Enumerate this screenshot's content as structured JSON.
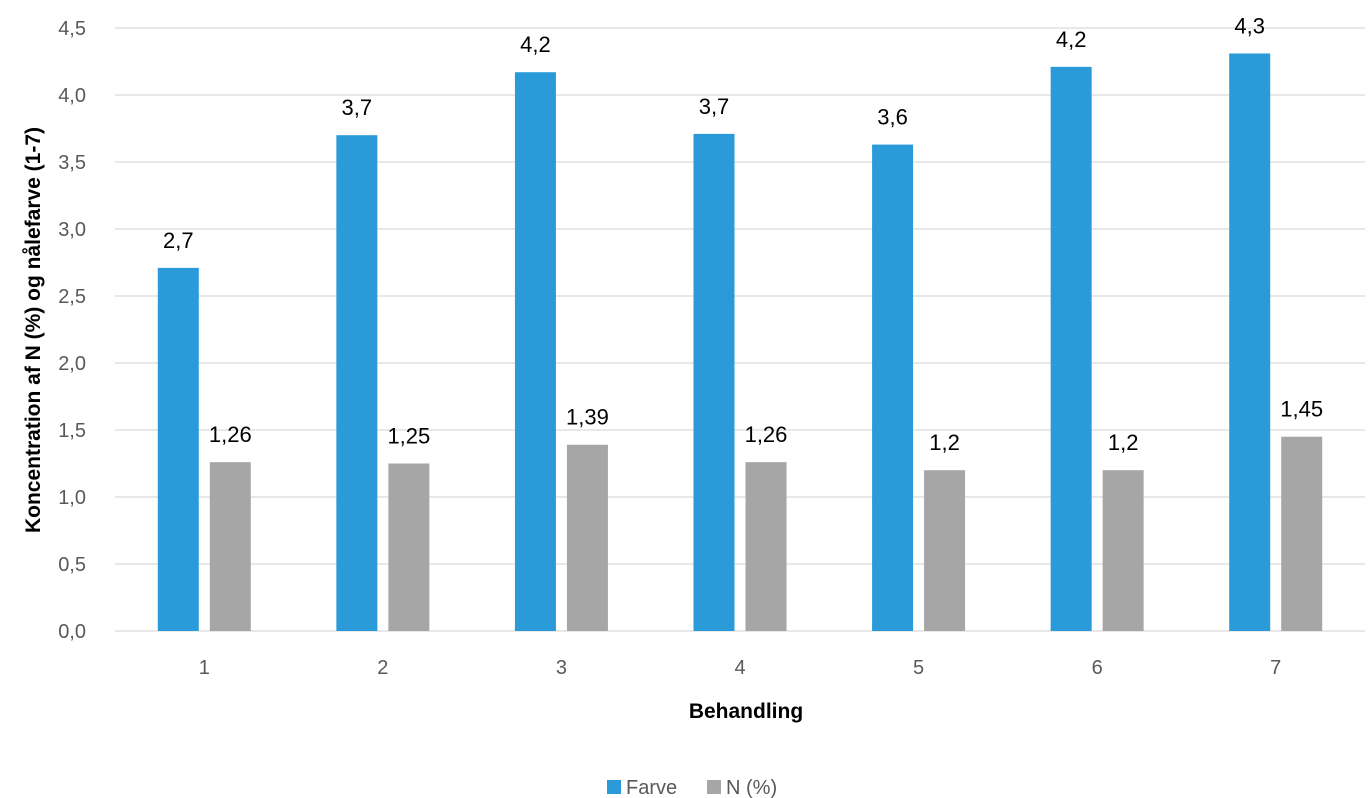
{
  "chart_data": {
    "type": "bar",
    "categories": [
      "1",
      "2",
      "3",
      "4",
      "5",
      "6",
      "7"
    ],
    "series": [
      {
        "name": "Farve",
        "color": "#2a9bd8",
        "values": [
          2.71,
          3.7,
          4.17,
          3.71,
          3.63,
          4.21,
          4.31
        ],
        "labels": [
          "2,7",
          "3,7",
          "4,2",
          "3,7",
          "3,6",
          "4,2",
          "4,3"
        ]
      },
      {
        "name": "N (%)",
        "color": "#a6a6a6",
        "values": [
          1.26,
          1.25,
          1.39,
          1.26,
          1.2,
          1.2,
          1.45
        ],
        "labels": [
          "1,26",
          "1,25",
          "1,39",
          "1,26",
          "1,2",
          "1,2",
          "1,45"
        ]
      }
    ],
    "xlabel": "Behandling",
    "ylabel": "Koncentration af N (%) og nålefarve (1-7)",
    "ylim": [
      0,
      4.5
    ],
    "yticks": [
      0,
      0.5,
      1.0,
      1.5,
      2.0,
      2.5,
      3.0,
      3.5,
      4.0,
      4.5
    ],
    "ytick_labels": [
      "0,0",
      "0,5",
      "1,0",
      "1,5",
      "2,0",
      "2,5",
      "3,0",
      "3,5",
      "4,0",
      "4,5"
    ],
    "grid": true,
    "legend_position": "bottom"
  }
}
